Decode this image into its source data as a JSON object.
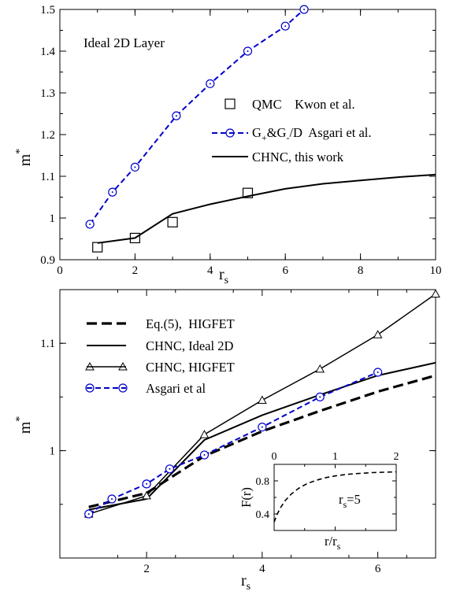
{
  "chart_data": [
    {
      "type": "line",
      "title": "",
      "annotation": "Ideal 2D Layer",
      "xlabel": "r",
      "xlabel_sub": "s",
      "ylabel": "m",
      "ylabel_sup": "*",
      "xlim": [
        0,
        10
      ],
      "ylim": [
        0.9,
        1.5
      ],
      "xticks": [
        "0",
        "2",
        "4",
        "6",
        "8",
        "10"
      ],
      "yticks": [
        "0.9",
        "1",
        "1.1",
        "1.2",
        "1.3",
        "1.4",
        "1.5"
      ],
      "legend_position": "center-right",
      "series": [
        {
          "name": "QMC    Kwon et al.",
          "style": "squares",
          "color": "#000000",
          "x": [
            1,
            2,
            3,
            5
          ],
          "y": [
            0.93,
            0.952,
            0.99,
            1.06
          ]
        },
        {
          "name_parts": [
            "G",
            "+",
            "&G",
            "-",
            "/D  Asgari et al."
          ],
          "style": "dashed-circles",
          "color": "#0000cc",
          "x": [
            0.8,
            1.4,
            2.0,
            3.1,
            4.0,
            5.0,
            6.0,
            6.5
          ],
          "y": [
            0.985,
            1.062,
            1.122,
            1.245,
            1.322,
            1.4,
            1.46,
            1.5
          ]
        },
        {
          "name": "CHNC, this work",
          "style": "solid",
          "color": "#000000",
          "x": [
            1.0,
            2.0,
            3.0,
            4.0,
            5.0,
            6.0,
            7.0,
            8.0,
            9.0,
            10.0
          ],
          "y": [
            0.94,
            0.952,
            1.01,
            1.033,
            1.052,
            1.07,
            1.082,
            1.09,
            1.098,
            1.104
          ]
        }
      ]
    },
    {
      "type": "line",
      "title": "",
      "xlabel": "r",
      "xlabel_sub": "s",
      "ylabel": "m",
      "ylabel_sup": "*",
      "xlim": [
        0.5,
        7
      ],
      "ylim": [
        0.9,
        1.15
      ],
      "xticks": [
        "2",
        "4",
        "6"
      ],
      "yticks": [
        "1",
        "1.1"
      ],
      "legend_position": "top-left",
      "series": [
        {
          "name": "Eq.(5),  HIGFET",
          "style": "thick-dashed",
          "color": "#000000",
          "x": [
            1.0,
            2.0,
            3.0,
            4.0,
            5.0,
            6.0,
            7.0
          ],
          "y": [
            0.9475,
            0.9605,
            0.995,
            1.018,
            1.037,
            1.055,
            1.07
          ]
        },
        {
          "name": "CHNC, Ideal 2D",
          "style": "solid",
          "color": "#000000",
          "x": [
            1.0,
            2.0,
            3.0,
            4.0,
            5.0,
            6.0,
            7.0
          ],
          "y": [
            0.945,
            0.955,
            1.01,
            1.033,
            1.052,
            1.07,
            1.082
          ]
        },
        {
          "name": "CHNC, HIGFET",
          "style": "solid-triangles",
          "color": "#000000",
          "x": [
            1.0,
            2.0,
            3.0,
            4.0,
            5.0,
            6.0,
            7.0
          ],
          "y": [
            0.941,
            0.958,
            1.015,
            1.047,
            1.076,
            1.108,
            1.146
          ]
        },
        {
          "name": "Asgari et al",
          "style": "dashed-circles",
          "color": "#0000cc",
          "x": [
            1.0,
            1.4,
            2.0,
            2.4,
            3.0,
            4.0,
            5.0,
            6.0
          ],
          "y": [
            0.941,
            0.955,
            0.969,
            0.983,
            0.996,
            1.022,
            1.05,
            1.073
          ]
        }
      ],
      "inset": {
        "type": "line",
        "xlabel": "r/r",
        "xlabel_sub": "s",
        "ylabel": "F(r)",
        "annotation": "r",
        "annotation_sub": "s",
        "annotation_value": "=5",
        "xlim": [
          0,
          2
        ],
        "ylim": [
          0.2,
          1.0
        ],
        "xticks": [
          "0",
          "1",
          "2"
        ],
        "yticks": [
          "0.4",
          "0.8"
        ],
        "series": [
          {
            "name": "",
            "style": "dashed",
            "color": "#000000",
            "x": [
              0.0,
              0.04,
              0.1,
              0.18,
              0.28,
              0.4,
              0.55,
              0.7,
              0.85,
              1.0,
              1.2,
              1.4,
              1.6,
              1.8,
              2.0
            ],
            "y": [
              0.3,
              0.38,
              0.47,
              0.56,
              0.64,
              0.71,
              0.77,
              0.81,
              0.84,
              0.86,
              0.88,
              0.89,
              0.9,
              0.905,
              0.91
            ]
          }
        ]
      }
    }
  ]
}
